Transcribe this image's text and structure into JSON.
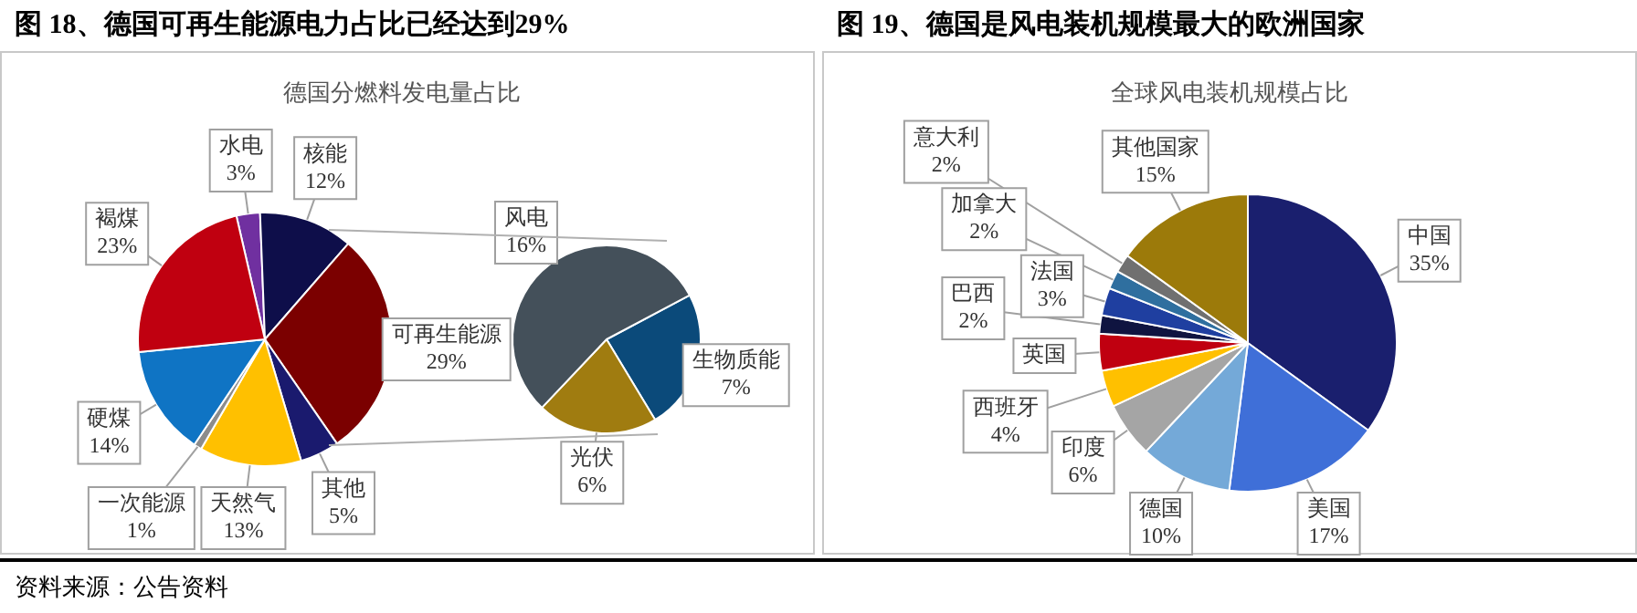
{
  "chart_data": [
    {
      "type": "pie",
      "title": "图 18、德国可再生能源电力占比已经达到29%",
      "subtitle": "德国分燃料发电量占比",
      "categories": [
        "水电",
        "核能",
        "可再生能源",
        "其他",
        "天然气",
        "一次能源",
        "硬煤",
        "褐煤"
      ],
      "values": [
        3,
        12,
        29,
        5,
        13,
        1,
        14,
        23
      ],
      "value_labels": [
        "3%",
        "12%",
        "29%",
        "5%",
        "13%",
        "1%",
        "14%",
        "23%"
      ],
      "colors": [
        "#7030a0",
        "#0e0e4a",
        "#7b0000",
        "#1a1a6e",
        "#ffc000",
        "#8c8c8c",
        "#0f74c4",
        "#c00010"
      ],
      "legend": false,
      "annotations": [
        "资料来源：公告资料"
      ]
    },
    {
      "type": "pie",
      "categories": [
        "生物质能",
        "光伏",
        "风电"
      ],
      "values": [
        7,
        6,
        16
      ],
      "value_labels": [
        "7%",
        "6%",
        "16%"
      ],
      "colors": [
        "#0b4a7a",
        "#a07c10",
        "#44505a"
      ],
      "legend": false
    },
    {
      "type": "pie",
      "title": "图 19、德国是风电装机规模最大的欧洲国家",
      "subtitle": "全球风电装机规模占比",
      "categories": [
        "中国",
        "美国",
        "德国",
        "印度",
        "西班牙",
        "英国",
        "巴西",
        "法国",
        "加拿大",
        "意大利",
        "其他国家"
      ],
      "values": [
        35,
        17,
        10,
        6,
        4,
        4,
        2,
        3,
        2,
        2,
        15
      ],
      "value_labels": [
        "35%",
        "17%",
        "10%",
        "6%",
        "4%",
        null,
        "2%",
        "3%",
        "2%",
        "2%",
        "15%"
      ],
      "colors": [
        "#1a1f6e",
        "#3f6fd8",
        "#74a9d8",
        "#a5a5a5",
        "#ffc000",
        "#c00010",
        "#0f1440",
        "#1f3fa0",
        "#2f6f9f",
        "#707070",
        "#9c7a0a"
      ],
      "legend": false
    }
  ]
}
